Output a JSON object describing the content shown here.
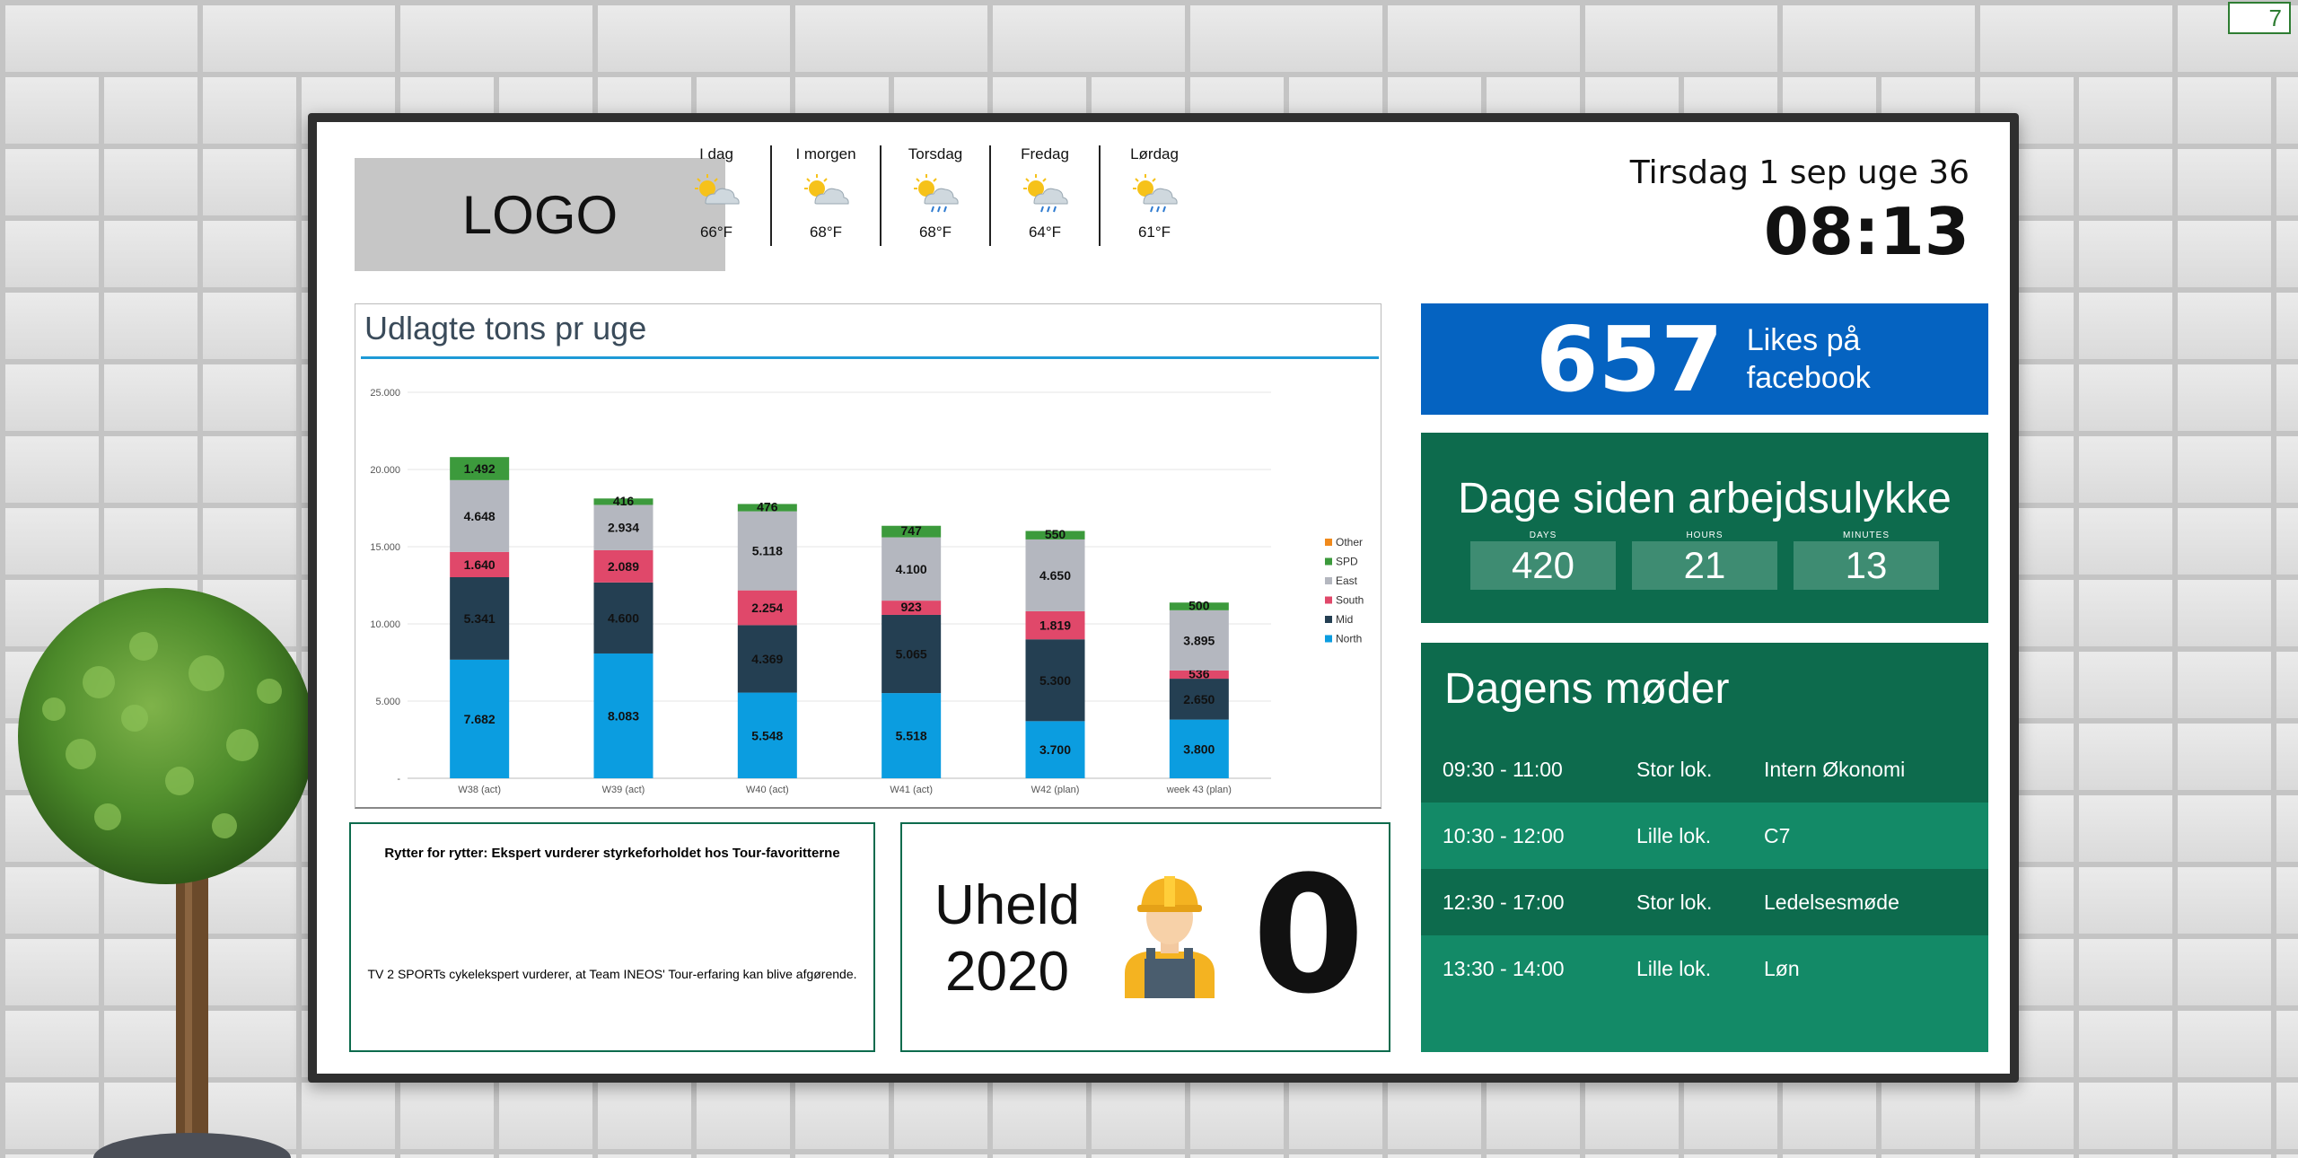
{
  "page_badge": "7",
  "logo": {
    "text": "LOGO"
  },
  "weather": [
    {
      "day": "I dag",
      "temp": "66°F",
      "icon": "sun-cloud-icon"
    },
    {
      "day": "I morgen",
      "temp": "68°F",
      "icon": "sun-cloud-icon"
    },
    {
      "day": "Torsdag",
      "temp": "68°F",
      "icon": "sun-cloud-rain-icon"
    },
    {
      "day": "Fredag",
      "temp": "64°F",
      "icon": "sun-cloud-rain-icon"
    },
    {
      "day": "Lørdag",
      "temp": "61°F",
      "icon": "sun-cloud-rain-icon"
    }
  ],
  "datetime": {
    "date": "Tirsdag 1 sep uge 36",
    "time": "08:13"
  },
  "facebook": {
    "count": "657",
    "label_line1": "Likes på",
    "label_line2": "facebook"
  },
  "accident_free": {
    "title": "Dage siden arbejdsulykke",
    "units": [
      {
        "caption": "DAYS",
        "value": "420"
      },
      {
        "caption": "HOURS",
        "value": "21"
      },
      {
        "caption": "MINUTES",
        "value": "13"
      }
    ]
  },
  "meetings": {
    "title": "Dagens møder",
    "rows": [
      {
        "time": "09:30 - 11:00",
        "room": "Stor lok.",
        "name": "Intern Økonomi"
      },
      {
        "time": "10:30 - 12:00",
        "room": "Lille lok.",
        "name": "C7"
      },
      {
        "time": "12:30 - 17:00",
        "room": "Stor lok.",
        "name": "Ledelsesmøde"
      },
      {
        "time": "13:30 - 14:00",
        "room": "Lille lok.",
        "name": "Løn"
      }
    ]
  },
  "news": {
    "headline": "Rytter for rytter: Ekspert vurderer styrkeforholdet hos Tour-favoritterne",
    "body": "TV 2 SPORTs cykelekspert vurderer, at Team INEOS' Tour-erfaring kan blive afgørende."
  },
  "accidents": {
    "label_line1": "Uheld",
    "label_line2": "2020",
    "count": "0",
    "icon": "worker-icon"
  },
  "chart_data": {
    "type": "bar",
    "stacked": true,
    "title": "Udlagte tons pr uge",
    "categories": [
      "W38 (act)",
      "W39 (act)",
      "W40 (act)",
      "W41 (act)",
      "W42 (plan)",
      "week 43 (plan)"
    ],
    "series": [
      {
        "name": "North",
        "color": "#0b9de0",
        "values": [
          7682,
          8083,
          5548,
          5518,
          3700,
          3800
        ],
        "labels": [
          "7.682",
          "8.083",
          "5.548",
          "5.518",
          "3.700",
          "3.800"
        ]
      },
      {
        "name": "Mid",
        "color": "#243f52",
        "values": [
          5341,
          4600,
          4369,
          5065,
          5300,
          2650
        ],
        "labels": [
          "5.341",
          "4.600",
          "4.369",
          "5.065",
          "5.300",
          "2.650"
        ]
      },
      {
        "name": "South",
        "color": "#e0486a",
        "values": [
          1640,
          2089,
          2254,
          923,
          1819,
          536
        ],
        "labels": [
          "1.640",
          "2.089",
          "2.254",
          "923",
          "1.819",
          "536"
        ]
      },
      {
        "name": "East",
        "color": "#b4b7bf",
        "values": [
          4648,
          2934,
          5118,
          4100,
          4650,
          3895
        ],
        "labels": [
          "4.648",
          "2.934",
          "5.118",
          "4.100",
          "4.650",
          "3.895"
        ]
      },
      {
        "name": "SPD",
        "color": "#3c9a3c",
        "values": [
          1492,
          416,
          476,
          747,
          550,
          500
        ],
        "labels": [
          "1.492",
          "416",
          "476",
          "747",
          "550",
          "500"
        ]
      },
      {
        "name": "Other",
        "color": "#f08a1c",
        "values": [
          0,
          0,
          0,
          0,
          0,
          0
        ],
        "labels": [
          "",
          "",
          "",
          "",
          "",
          ""
        ]
      }
    ],
    "yticks": [
      {
        "value": 0,
        "label": "-"
      },
      {
        "value": 5000,
        "label": "5.000"
      },
      {
        "value": 10000,
        "label": "10.000"
      },
      {
        "value": 15000,
        "label": "15.000"
      },
      {
        "value": 20000,
        "label": "20.000"
      },
      {
        "value": 25000,
        "label": "25.000"
      }
    ],
    "ylim": [
      0,
      25000
    ],
    "legend": "right",
    "grid": true
  }
}
